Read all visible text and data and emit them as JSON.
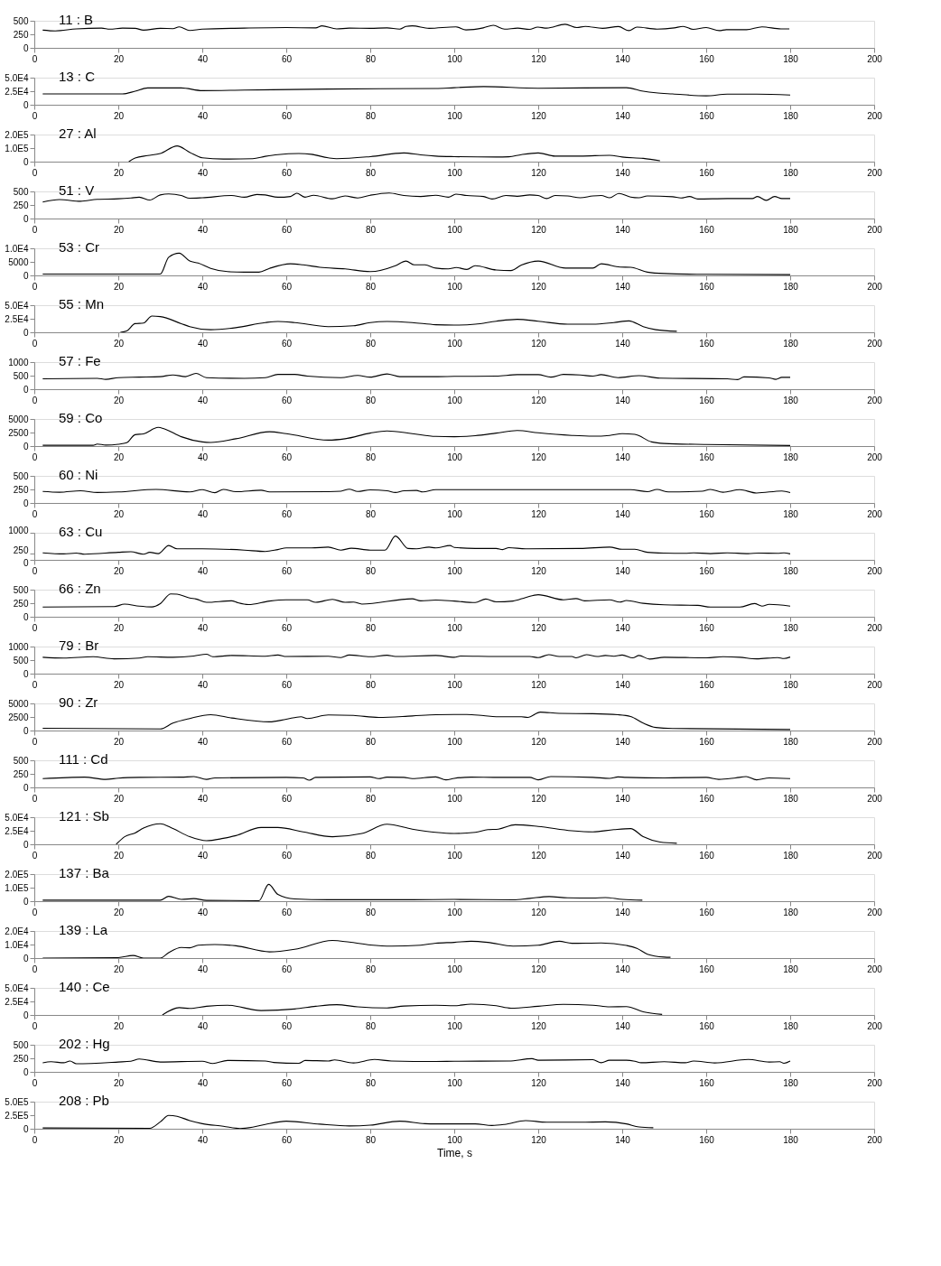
{
  "chart_data": [
    {
      "type": "line",
      "title": "11 : B",
      "color": "#000000",
      "xlim": [
        0,
        200
      ],
      "xticks": [
        0,
        20,
        40,
        60,
        80,
        100,
        120,
        140,
        160,
        180,
        200
      ],
      "ylim": [
        0,
        500
      ],
      "yticks": [
        0,
        250,
        500
      ],
      "grid": false,
      "x": [
        2,
        5,
        10,
        16,
        18,
        21,
        24,
        26,
        30,
        33,
        34.5,
        37,
        40,
        50,
        60,
        67,
        68.5,
        72,
        75,
        80,
        84,
        87,
        88.5,
        90,
        94,
        100.4,
        102.8,
        106.9,
        109.3,
        112,
        115.1,
        117.9,
        119.9,
        122,
        126.4,
        129.2,
        131.2,
        135.3,
        139.1,
        141.6,
        143.5,
        148.3,
        152.4,
        154.5,
        156.9,
        160,
        163.1,
        164.8,
        169.6,
        173.3,
        177.8,
        179.8
      ],
      "values": [
        327,
        313,
        350,
        364,
        346,
        364,
        360,
        327,
        360,
        355,
        388,
        322,
        346,
        364,
        374,
        369,
        407,
        350,
        364,
        360,
        369,
        346,
        397,
        407,
        360,
        388,
        332,
        369,
        416,
        346,
        364,
        341,
        383,
        364,
        435,
        374,
        397,
        360,
        393,
        318,
        383,
        346,
        369,
        397,
        341,
        374,
        318,
        336,
        336,
        388,
        350,
        350
      ]
    },
    {
      "type": "line",
      "title": "13 : C",
      "color": "#000000",
      "xlim": [
        0,
        200
      ],
      "xticks": [
        0,
        20,
        40,
        60,
        80,
        100,
        120,
        140,
        160,
        180,
        200
      ],
      "ylim": [
        0,
        50000
      ],
      "yticks": [
        0,
        {
          "value": 25000,
          "label": "2.5E4"
        },
        {
          "value": 50000,
          "label": "5.0E4"
        }
      ],
      "grid": false,
      "x": [
        2,
        21,
        24,
        27,
        35,
        40,
        50,
        70,
        95.6,
        100,
        107,
        120,
        141,
        145,
        148,
        152,
        160,
        165,
        172,
        180
      ],
      "values": [
        20000,
        20000,
        25000,
        31000,
        31000,
        26000,
        27000,
        29000,
        30000,
        31500,
        33500,
        30500,
        31500,
        25000,
        22000,
        20000,
        16500,
        19500,
        19500,
        18000
      ]
    },
    {
      "type": "line",
      "title": "27 : Al",
      "color": "#000000",
      "xlim": [
        0,
        200
      ],
      "xticks": [
        0,
        20,
        40,
        60,
        80,
        100,
        120,
        140,
        160,
        180,
        200
      ],
      "ylim": [
        0,
        200000
      ],
      "yticks": [
        0,
        {
          "value": 100000,
          "label": "1.0E5"
        },
        {
          "value": 200000,
          "label": "2.0E5"
        }
      ],
      "grid": false,
      "x": [
        22.5,
        24,
        27,
        30,
        34,
        37,
        40,
        45,
        52,
        55,
        58,
        63,
        66,
        70,
        72,
        80,
        88,
        92,
        95.6,
        100,
        110,
        113,
        116,
        120,
        124,
        130,
        137,
        140,
        145,
        149
      ],
      "values": [
        0,
        26000,
        45000,
        60000,
        116000,
        69000,
        28000,
        19000,
        22000,
        39000,
        52000,
        60000,
        54000,
        28000,
        22000,
        37000,
        64000,
        50000,
        41000,
        37000,
        34000,
        36000,
        52000,
        64000,
        41000,
        41000,
        47000,
        34000,
        24000,
        7000
      ]
    },
    {
      "type": "line",
      "title": "51 : V",
      "color": "#000000",
      "xlim": [
        0,
        200
      ],
      "xticks": [
        0,
        20,
        40,
        60,
        80,
        100,
        120,
        140,
        160,
        180,
        200
      ],
      "ylim": [
        0,
        500
      ],
      "yticks": [
        0,
        250,
        500
      ],
      "grid": false,
      "x": [
        2,
        6,
        11,
        15,
        20,
        23,
        25,
        27.5,
        30,
        32,
        35,
        37,
        40,
        47,
        50,
        53,
        55,
        58,
        61,
        62.5,
        64.5,
        66.5,
        71,
        74,
        77,
        80,
        84.5,
        88,
        92,
        95.6,
        98.6,
        100.4,
        103,
        107,
        109,
        112.3,
        115,
        118,
        120,
        122,
        124,
        127,
        130,
        133,
        135,
        137,
        139.2,
        142,
        144,
        146,
        152,
        154,
        156,
        158,
        165,
        171,
        172.2,
        174.3,
        176.3,
        178,
        180
      ],
      "values": [
        304,
        350,
        318,
        355,
        364,
        379,
        393,
        341,
        435,
        453,
        425,
        374,
        383,
        425,
        393,
        444,
        435,
        393,
        407,
        467,
        393,
        430,
        364,
        416,
        379,
        430,
        472,
        425,
        407,
        430,
        393,
        449,
        425,
        407,
        360,
        425,
        411,
        435,
        425,
        369,
        425,
        416,
        383,
        416,
        425,
        383,
        463,
        397,
        383,
        416,
        402,
        379,
        407,
        360,
        369,
        369,
        407,
        336,
        407,
        369,
        369
      ]
    },
    {
      "type": "line",
      "title": "53 : Cr",
      "color": "#000000",
      "xlim": [
        0,
        200
      ],
      "xticks": [
        0,
        20,
        40,
        60,
        80,
        100,
        120,
        140,
        160,
        180,
        200
      ],
      "ylim": [
        0,
        10000
      ],
      "yticks": [
        0,
        5000,
        {
          "value": 10000,
          "label": "1.0E4"
        }
      ],
      "grid": false,
      "x": [
        2,
        30,
        32,
        34.5,
        37,
        39,
        42,
        46,
        50,
        53.5,
        56,
        61,
        64,
        68,
        74,
        80,
        86,
        88.5,
        90.5,
        93,
        95.6,
        98.6,
        100.5,
        103,
        105,
        110,
        113.5,
        116,
        120,
        126.5,
        133,
        135,
        139.5,
        142,
        146,
        150,
        160,
        180
      ],
      "values": [
        500,
        500,
        6700,
        8200,
        5300,
        4600,
        2600,
        1400,
        1200,
        1200,
        2600,
        4300,
        3900,
        3000,
        2400,
        1400,
        3600,
        5300,
        3900,
        3900,
        2700,
        2400,
        2900,
        2200,
        3600,
        2000,
        1800,
        3800,
        5300,
        2700,
        2700,
        4300,
        3100,
        3000,
        1200,
        700,
        400,
        300
      ]
    },
    {
      "type": "line",
      "title": "55 : Mn",
      "color": "#000000",
      "xlim": [
        0,
        200
      ],
      "xticks": [
        0,
        20,
        40,
        60,
        80,
        100,
        120,
        140,
        160,
        180,
        200
      ],
      "ylim": [
        0,
        50000
      ],
      "yticks": [
        0,
        {
          "value": 25000,
          "label": "2.5E4"
        },
        {
          "value": 50000,
          "label": "5.0E4"
        }
      ],
      "grid": false,
      "x": [
        20.5,
        22,
        24,
        26,
        28,
        30,
        35,
        37,
        42,
        48,
        55,
        58,
        62,
        70,
        76,
        80,
        84,
        90,
        95.6,
        100,
        105,
        110,
        115,
        120,
        127,
        133,
        138,
        141.6,
        145,
        148,
        153
      ],
      "values": [
        0,
        2400,
        16000,
        17000,
        30000,
        29000,
        16000,
        10500,
        4800,
        8600,
        18000,
        20000,
        18000,
        10500,
        12000,
        18000,
        20000,
        18000,
        14000,
        13300,
        15000,
        20500,
        24000,
        20500,
        15000,
        15000,
        18000,
        21000,
        10500,
        4800,
        1900
      ]
    },
    {
      "type": "line",
      "title": "57 : Fe",
      "color": "#000000",
      "xlim": [
        0,
        200
      ],
      "xticks": [
        0,
        20,
        40,
        60,
        80,
        100,
        120,
        140,
        160,
        180,
        200
      ],
      "ylim": [
        0,
        1000
      ],
      "yticks": [
        0,
        500,
        1000
      ],
      "grid": false,
      "x": [
        2,
        15,
        17,
        20,
        25,
        30,
        33,
        36,
        38.5,
        41,
        50,
        55,
        58,
        62,
        65,
        73,
        77,
        80,
        84,
        87,
        95.6,
        100,
        110,
        115,
        120,
        123,
        126,
        130,
        133,
        135,
        139,
        144,
        149,
        165,
        167.5,
        169,
        175,
        176.6,
        178,
        180
      ],
      "values": [
        382,
        400,
        364,
        427,
        445,
        464,
        527,
        464,
        582,
        427,
        400,
        427,
        545,
        545,
        482,
        427,
        509,
        445,
        564,
        464,
        464,
        473,
        482,
        536,
        536,
        445,
        545,
        527,
        482,
        536,
        427,
        500,
        409,
        382,
        355,
        455,
        418,
        364,
        436,
        436
      ]
    },
    {
      "type": "line",
      "title": "59 : Co",
      "color": "#000000",
      "xlim": [
        0,
        200
      ],
      "xticks": [
        0,
        20,
        40,
        60,
        80,
        100,
        120,
        140,
        160,
        180,
        200
      ],
      "ylim": [
        0,
        5000
      ],
      "yticks": [
        0,
        2500,
        5000
      ],
      "grid": false,
      "x": [
        2,
        14,
        15,
        17,
        20,
        22,
        24,
        26,
        29.5,
        31,
        35,
        40,
        42,
        48,
        56,
        60,
        70,
        74,
        80,
        84,
        90,
        95.6,
        100,
        105,
        110,
        115,
        120,
        128,
        133,
        137,
        140,
        143,
        147,
        150,
        160,
        180
      ],
      "values": [
        140,
        140,
        380,
        190,
        340,
        620,
        2100,
        2260,
        3460,
        3170,
        1730,
        770,
        670,
        1350,
        2640,
        2300,
        1100,
        1350,
        2400,
        2790,
        2300,
        1780,
        1730,
        1920,
        2400,
        2880,
        2450,
        1970,
        1830,
        1970,
        2300,
        2160,
        770,
        480,
        290,
        100
      ]
    },
    {
      "type": "line",
      "title": "60 : Ni",
      "color": "#000000",
      "xlim": [
        0,
        200
      ],
      "xticks": [
        0,
        20,
        40,
        60,
        80,
        100,
        120,
        140,
        160,
        180,
        200
      ],
      "ylim": [
        0,
        500
      ],
      "yticks": [
        0,
        250,
        500
      ],
      "grid": false,
      "x": [
        2,
        6,
        11,
        15,
        20,
        29,
        37,
        40,
        43,
        45,
        48,
        54,
        56,
        70,
        73,
        75,
        77,
        80,
        84,
        86,
        88,
        91,
        92.5,
        95.6,
        100,
        120,
        142,
        146,
        148.3,
        151,
        159,
        161,
        164,
        168,
        172,
        178,
        180
      ],
      "values": [
        212,
        198,
        226,
        193,
        203,
        250,
        203,
        245,
        189,
        250,
        208,
        236,
        203,
        208,
        217,
        255,
        212,
        241,
        226,
        193,
        226,
        231,
        203,
        245,
        245,
        245,
        245,
        208,
        250,
        203,
        217,
        250,
        198,
        245,
        184,
        222,
        193
      ]
    },
    {
      "type": "line",
      "title": "63 : Cu",
      "color": "#000000",
      "xlim": [
        0,
        200
      ],
      "xticks": [
        0,
        20,
        40,
        60,
        80,
        100,
        120,
        140,
        160,
        180,
        200
      ],
      "ylim": [
        0,
        1000
      ],
      "yticks": [
        0,
        250,
        1000
      ],
      "grid": false,
      "x": [
        2,
        7,
        10,
        12,
        20,
        23,
        26,
        27.5,
        29.5,
        32,
        34,
        40,
        50,
        55,
        58,
        60,
        66,
        70,
        73,
        75.5,
        80,
        83.5,
        86,
        89,
        91,
        94,
        95.6,
        99,
        100,
        105,
        110,
        111.5,
        113,
        117,
        130,
        137,
        140,
        143,
        146,
        150,
        155,
        157,
        161,
        165,
        170,
        172.5,
        177,
        178.5,
        180
      ],
      "values": [
        260,
        220,
        250,
        210,
        280,
        300,
        210,
        280,
        230,
        530,
        410,
        410,
        360,
        310,
        380,
        440,
        440,
        470,
        360,
        430,
        360,
        360,
        880,
        420,
        410,
        470,
        440,
        530,
        460,
        420,
        420,
        380,
        450,
        410,
        420,
        470,
        390,
        390,
        280,
        250,
        240,
        260,
        230,
        260,
        230,
        250,
        240,
        260,
        220
      ]
    },
    {
      "type": "line",
      "title": "66 : Zn",
      "color": "#000000",
      "xlim": [
        0,
        200
      ],
      "xticks": [
        0,
        20,
        40,
        60,
        80,
        100,
        120,
        140,
        160,
        180,
        200
      ],
      "ylim": [
        0,
        500
      ],
      "yticks": [
        0,
        250,
        500
      ],
      "grid": false,
      "x": [
        2,
        19,
        21.5,
        25,
        28,
        30,
        32.5,
        34,
        37,
        38.5,
        41,
        47,
        48.5,
        51,
        56,
        60,
        65,
        67,
        71,
        74,
        76,
        78,
        90,
        92,
        95.6,
        100,
        105,
        107.5,
        110,
        114,
        117,
        120,
        126,
        129,
        131,
        137,
        139.4,
        141,
        145,
        150,
        158,
        161,
        168,
        171.5,
        173.3,
        175,
        180
      ],
      "values": [
        178,
        187,
        234,
        196,
        182,
        243,
        421,
        416,
        346,
        327,
        266,
        294,
        257,
        224,
        290,
        313,
        313,
        266,
        322,
        266,
        271,
        234,
        332,
        294,
        308,
        290,
        262,
        327,
        276,
        290,
        355,
        407,
        313,
        336,
        294,
        313,
        271,
        299,
        248,
        220,
        210,
        178,
        178,
        243,
        196,
        229,
        196
      ]
    },
    {
      "type": "line",
      "title": "79 : Br",
      "color": "#000000",
      "xlim": [
        0,
        200
      ],
      "xticks": [
        0,
        20,
        40,
        60,
        80,
        100,
        120,
        140,
        160,
        180,
        200
      ],
      "ylim": [
        0,
        1000
      ],
      "yticks": [
        0,
        500,
        1000
      ],
      "grid": false,
      "x": [
        2,
        7,
        14,
        19,
        25,
        27,
        33,
        38,
        41,
        42.5,
        47,
        55,
        58,
        60,
        70,
        73,
        75,
        80,
        84,
        86,
        95.6,
        100,
        101.5,
        110,
        118,
        120,
        122.5,
        125,
        128,
        129,
        131.5,
        134,
        136,
        138,
        140,
        142.5,
        144,
        146.5,
        150,
        160,
        164,
        168,
        172,
        177,
        178.5,
        180
      ],
      "values": [
        604,
        575,
        623,
        547,
        575,
        623,
        604,
        651,
        717,
        623,
        670,
        642,
        689,
        632,
        642,
        594,
        689,
        623,
        679,
        632,
        670,
        604,
        651,
        632,
        632,
        594,
        698,
        632,
        632,
        585,
        698,
        632,
        670,
        642,
        689,
        585,
        670,
        538,
        604,
        585,
        623,
        604,
        547,
        594,
        557,
        613
      ]
    },
    {
      "type": "line",
      "title": "90 : Zr",
      "color": "#000000",
      "xlim": [
        0,
        200
      ],
      "xticks": [
        0,
        20,
        40,
        60,
        80,
        100,
        120,
        140,
        160,
        180,
        200
      ],
      "ylim": [
        0,
        5000
      ],
      "yticks": [
        0,
        2500,
        5000
      ],
      "grid": false,
      "x": [
        2,
        30,
        33,
        37,
        42,
        47,
        56,
        60,
        63.5,
        65,
        70,
        76,
        82,
        90,
        95.6,
        100,
        103,
        107,
        110,
        116,
        117.5,
        120.5,
        125,
        133,
        139,
        142,
        145,
        148,
        152,
        180
      ],
      "values": [
        425,
        283,
        1370,
        2220,
        2920,
        2310,
        1600,
        2080,
        2550,
        2220,
        2880,
        2780,
        2410,
        2690,
        2920,
        2970,
        2970,
        2740,
        2550,
        2550,
        2410,
        3400,
        3160,
        3110,
        2920,
        2590,
        1370,
        570,
        380,
        190
      ]
    },
    {
      "type": "line",
      "title": "111 : Cd",
      "color": "#000000",
      "xlim": [
        0,
        200
      ],
      "xticks": [
        0,
        20,
        40,
        60,
        80,
        100,
        120,
        140,
        160,
        180,
        200
      ],
      "ylim": [
        0,
        500
      ],
      "yticks": [
        0,
        250,
        500
      ],
      "grid": false,
      "x": [
        2,
        12,
        17,
        20,
        25,
        35,
        38,
        41,
        43,
        60,
        64,
        65.5,
        67,
        80,
        82,
        84,
        88,
        90,
        95.6,
        98,
        100,
        104,
        110,
        118,
        120,
        123,
        133,
        137,
        139,
        141,
        150,
        160,
        163,
        167,
        169.5,
        172,
        175,
        180
      ],
      "values": [
        162,
        190,
        148,
        171,
        185,
        190,
        199,
        148,
        176,
        185,
        176,
        134,
        185,
        194,
        162,
        190,
        185,
        162,
        194,
        139,
        167,
        190,
        185,
        185,
        139,
        199,
        185,
        167,
        194,
        185,
        176,
        185,
        148,
        176,
        199,
        139,
        176,
        162
      ]
    },
    {
      "type": "line",
      "title": "121 : Sb",
      "color": "#000000",
      "xlim": [
        0,
        200
      ],
      "xticks": [
        0,
        20,
        40,
        60,
        80,
        100,
        120,
        140,
        160,
        180,
        200
      ],
      "ylim": [
        0,
        50000
      ],
      "yticks": [
        0,
        {
          "value": 25000,
          "label": "2.5E4"
        },
        {
          "value": 50000,
          "label": "5.0E4"
        }
      ],
      "grid": false,
      "x": [
        19.5,
        21.5,
        24,
        26,
        30,
        33,
        37,
        41,
        45,
        48,
        54,
        58,
        64,
        71,
        78,
        84,
        90,
        95.6,
        100,
        105,
        108,
        110.5,
        114.5,
        120,
        128,
        133,
        138,
        142,
        145,
        149,
        153
      ],
      "values": [
        0,
        14000,
        21000,
        30000,
        38000,
        29000,
        14000,
        6600,
        11000,
        16000,
        31000,
        31000,
        23000,
        14000,
        20000,
        37000,
        28000,
        22000,
        20000,
        22000,
        27000,
        28000,
        36000,
        33000,
        25000,
        23000,
        27000,
        29000,
        14000,
        4200,
        1900
      ]
    },
    {
      "type": "line",
      "title": "137 : Ba",
      "color": "#000000",
      "xlim": [
        0,
        200
      ],
      "xticks": [
        0,
        20,
        40,
        60,
        80,
        100,
        120,
        140,
        160,
        180,
        200
      ],
      "ylim": [
        0,
        200000
      ],
      "yticks": [
        0,
        {
          "value": 100000,
          "label": "1.0E5"
        },
        {
          "value": 200000,
          "label": "2.0E5"
        }
      ],
      "grid": false,
      "x": [
        2,
        30,
        32,
        35,
        38,
        41,
        53.5,
        55.8,
        58,
        62,
        70,
        90,
        100,
        114,
        118,
        122.6,
        127,
        133,
        136,
        140,
        144.8
      ],
      "values": [
        7600,
        7600,
        36000,
        13000,
        19000,
        5700,
        3800,
        124000,
        50000,
        17000,
        11000,
        11000,
        13000,
        9500,
        21000,
        34000,
        25000,
        23000,
        27000,
        13000,
        7600
      ]
    },
    {
      "type": "line",
      "title": "139 : La",
      "color": "#000000",
      "xlim": [
        0,
        200
      ],
      "xticks": [
        0,
        20,
        40,
        60,
        80,
        100,
        120,
        140,
        160,
        180,
        200
      ],
      "ylim": [
        0,
        20000
      ],
      "yticks": [
        0,
        {
          "value": 10000,
          "label": "1.0E4"
        },
        {
          "value": 20000,
          "label": "2.0E4"
        }
      ],
      "grid": false,
      "x": [
        2,
        20,
        23.5,
        26,
        30,
        32,
        35,
        37,
        39,
        43,
        48,
        56,
        62,
        71,
        75,
        80,
        85,
        92,
        95.6,
        100,
        104,
        108,
        114,
        120,
        125,
        128,
        135,
        141,
        143.5,
        146,
        150,
        151.5
      ],
      "values": [
        0,
        380,
        1900,
        0,
        0,
        4000,
        7800,
        7600,
        9500,
        10000,
        9100,
        4600,
        6500,
        13000,
        11800,
        9700,
        8800,
        9500,
        11000,
        11600,
        12400,
        11600,
        8800,
        9500,
        12400,
        10900,
        11200,
        9300,
        7200,
        2900,
        760,
        570
      ]
    },
    {
      "type": "line",
      "title": "140 : Ce",
      "color": "#000000",
      "xlim": [
        0,
        200
      ],
      "xticks": [
        0,
        20,
        40,
        60,
        80,
        100,
        120,
        140,
        160,
        180,
        200
      ],
      "ylim": [
        0,
        50000
      ],
      "yticks": [
        0,
        {
          "value": 25000,
          "label": "2.5E4"
        },
        {
          "value": 50000,
          "label": "5.0E4"
        }
      ],
      "grid": false,
      "x": [
        30.5,
        34.5,
        37,
        41,
        46,
        54,
        62,
        67,
        72,
        77,
        84,
        88,
        95.6,
        100,
        104,
        110,
        113.5,
        120,
        126,
        133,
        137,
        141,
        145,
        149.5
      ],
      "values": [
        0,
        13500,
        12000,
        16000,
        18000,
        8200,
        11000,
        16000,
        19000,
        15000,
        13000,
        16500,
        18000,
        17000,
        20000,
        17000,
        12500,
        16000,
        19500,
        18000,
        15000,
        15500,
        5800,
        1000
      ]
    },
    {
      "type": "line",
      "title": "202 : Hg",
      "color": "#000000",
      "xlim": [
        0,
        200
      ],
      "xticks": [
        0,
        20,
        40,
        60,
        80,
        100,
        120,
        140,
        160,
        180,
        200
      ],
      "ylim": [
        0,
        500
      ],
      "yticks": [
        0,
        250,
        500
      ],
      "grid": false,
      "x": [
        2,
        4,
        7,
        8.5,
        10,
        20,
        23,
        25,
        30,
        40,
        42.5,
        46,
        55,
        57,
        63,
        64.5,
        70,
        71.5,
        76,
        81,
        85,
        95.6,
        100,
        113,
        118.5,
        120,
        133,
        135,
        137,
        141,
        143,
        144.5,
        150,
        155,
        157,
        162,
        170,
        175,
        177.5,
        178.5,
        180
      ],
      "values": [
        168,
        187,
        168,
        201,
        150,
        182,
        196,
        238,
        182,
        196,
        154,
        210,
        201,
        173,
        159,
        210,
        201,
        220,
        164,
        229,
        201,
        192,
        196,
        200,
        243,
        215,
        224,
        168,
        215,
        215,
        196,
        168,
        187,
        168,
        200,
        164,
        229,
        182,
        187,
        159,
        200
      ]
    },
    {
      "type": "line",
      "title": "208 : Pb",
      "color": "#000000",
      "xlim": [
        0,
        200
      ],
      "xticks": [
        0,
        20,
        40,
        60,
        80,
        100,
        120,
        140,
        160,
        180,
        200
      ],
      "ylim": [
        0,
        500000
      ],
      "yticks": [
        0,
        {
          "value": 250000,
          "label": "2.5E5"
        },
        {
          "value": 500000,
          "label": "5.0E5"
        }
      ],
      "grid": false,
      "xlabel": "Time, s",
      "x": [
        2,
        27.5,
        30,
        32,
        34,
        37,
        40,
        45,
        49,
        52,
        55,
        60,
        68,
        75,
        80,
        87,
        93,
        95.6,
        100,
        105,
        109,
        112,
        117,
        122,
        130,
        136,
        141,
        144,
        147.4
      ],
      "values": [
        14000,
        9400,
        127000,
        245000,
        230000,
        150000,
        94000,
        47000,
        4700,
        28000,
        80000,
        140000,
        85000,
        52000,
        66000,
        140000,
        94000,
        90000,
        90000,
        90000,
        61000,
        80000,
        150000,
        120000,
        120000,
        127000,
        90000,
        33000,
        19000
      ]
    }
  ]
}
